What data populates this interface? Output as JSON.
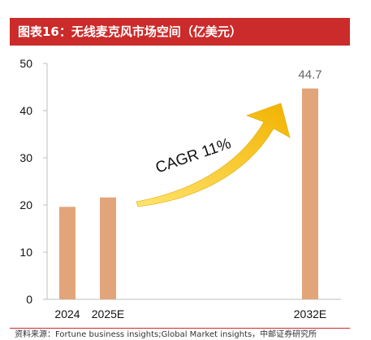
{
  "header": {
    "title": "图表16：无线麦克风市场空间（亿美元）"
  },
  "footer": {
    "source": "资料来源：Fortune business insights;Global Market insights，中邮证券研究所"
  },
  "colors": {
    "bar": "#e2a57a",
    "title_bg": "#cc2b2b",
    "arrow": "#f5b800",
    "arrow_light": "#ffdf5a"
  },
  "chart_data": {
    "type": "bar",
    "title": "",
    "xlabel": "",
    "ylabel": "",
    "categories": [
      "2024",
      "2025E",
      "2032E"
    ],
    "values": [
      19.6,
      21.6,
      44.7
    ],
    "data_labels": [
      "",
      "",
      "44.7"
    ],
    "ylim": [
      0,
      50
    ],
    "yticks": [
      0,
      10,
      20,
      30,
      40,
      50
    ],
    "grid": false,
    "annotation": "CAGR 11%"
  }
}
